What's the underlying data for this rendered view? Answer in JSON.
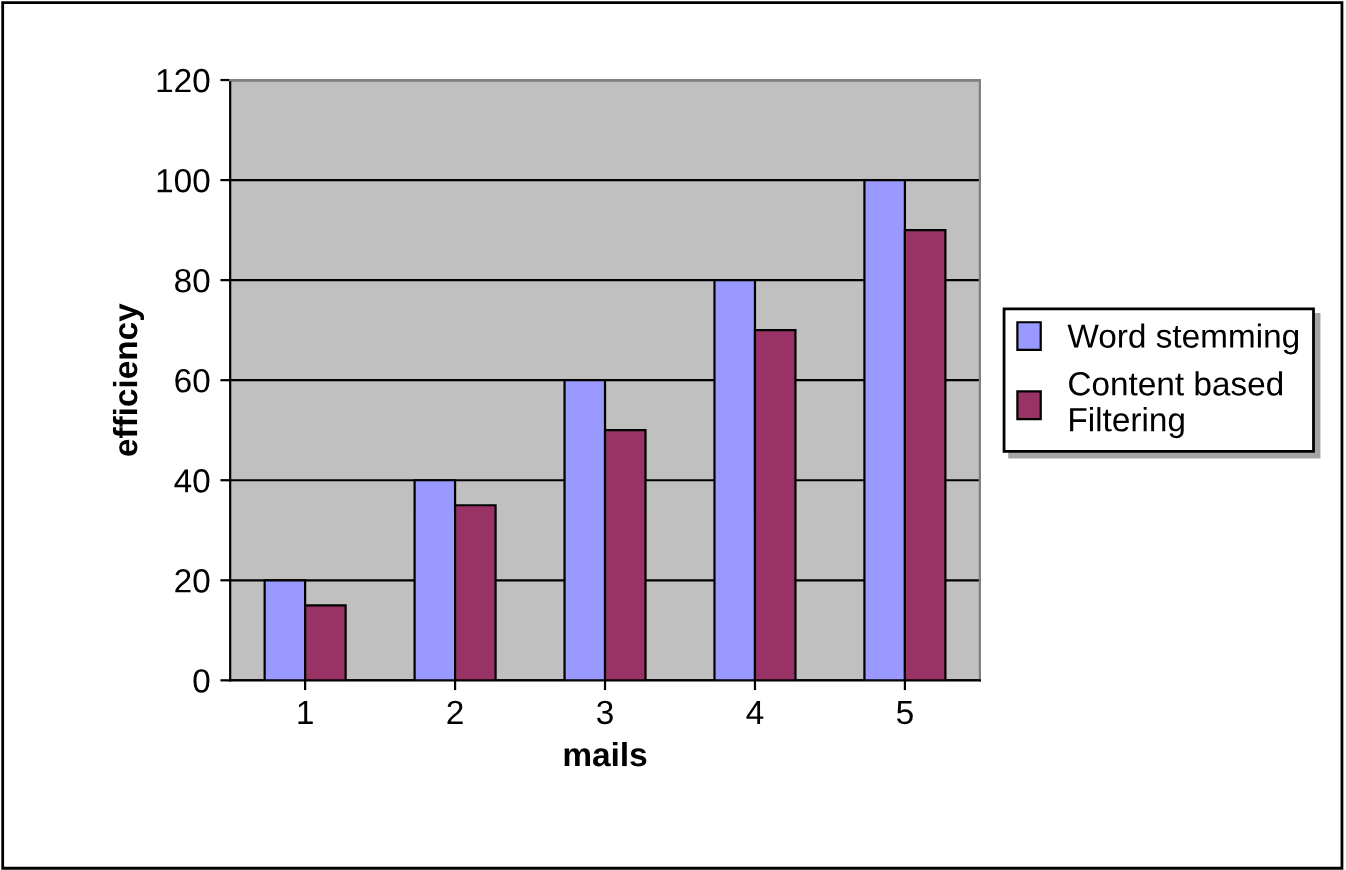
{
  "chart_data": {
    "type": "bar",
    "xlabel": "mails",
    "ylabel": "efficiency",
    "categories": [
      "1",
      "2",
      "3",
      "4",
      "5"
    ],
    "series": [
      {
        "name": "Word stemming",
        "color": "#9999ff",
        "values": [
          20,
          40,
          60,
          80,
          100
        ]
      },
      {
        "name": "Content based\nFiltering",
        "color": "#993366",
        "values": [
          15,
          35,
          50,
          70,
          90
        ]
      }
    ],
    "ylim": [
      0,
      120
    ],
    "yticks": [
      0,
      20,
      40,
      60,
      80,
      100,
      120
    ],
    "grid": "y",
    "legend": "right"
  }
}
